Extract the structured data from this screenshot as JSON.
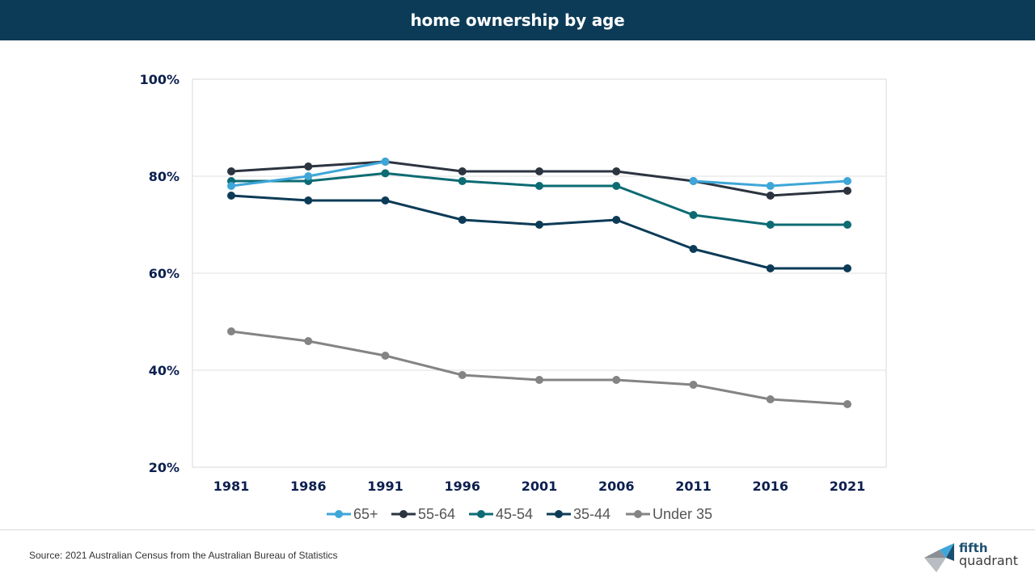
{
  "header": {
    "title": "home ownership by age"
  },
  "footer": {
    "source": "Source: 2021 Australian Census from the Australian Bureau of Statistics",
    "logo_line1": "fifth",
    "logo_line2": "quadrant"
  },
  "chart_data": {
    "type": "line",
    "title": "home ownership by age",
    "xlabel": "",
    "ylabel": "",
    "categories": [
      "1981",
      "1986",
      "1991",
      "1996",
      "2001",
      "2006",
      "2011",
      "2016",
      "2021"
    ],
    "ylim": [
      20,
      100
    ],
    "yticks": [
      20,
      40,
      60,
      80,
      100
    ],
    "ytick_labels": [
      "20%",
      "40%",
      "60%",
      "80%",
      "100%"
    ],
    "grid": true,
    "legend_position": "bottom",
    "series": [
      {
        "name": "65+",
        "color": "#3ea6d8",
        "values": [
          78,
          80,
          83,
          null,
          null,
          null,
          79,
          78,
          79
        ]
      },
      {
        "name": "55-64",
        "color": "#2c3440",
        "values": [
          81,
          82,
          83,
          81,
          81,
          81,
          79,
          76,
          77
        ]
      },
      {
        "name": "45-54",
        "color": "#0d6b73",
        "values": [
          79,
          79,
          80.6,
          79,
          78,
          78,
          72,
          70,
          70
        ]
      },
      {
        "name": "35-44",
        "color": "#0c3b57",
        "values": [
          76,
          75,
          75,
          71,
          70,
          71,
          65,
          61,
          61
        ]
      },
      {
        "name": "Under 35",
        "color": "#848484",
        "values": [
          48,
          46,
          43,
          39,
          38,
          38,
          37,
          34,
          33
        ]
      }
    ]
  }
}
